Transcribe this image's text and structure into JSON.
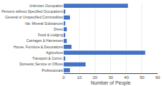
{
  "chart_data": {
    "type": "bar",
    "orientation": "horizontal",
    "categories": [
      "Professionals",
      "Domestic Service or Offices",
      "Transport & Comm.",
      "Agriculture",
      "House, Furniture & Decorations",
      "Carriages & Harnesses",
      "Food & Lodging",
      "Dress",
      "Var. Mineral Substances",
      "General or Unspecified Commodities",
      "Persons without Specified Occupations",
      "Unknown Occupation"
    ],
    "values": [
      4,
      14,
      1,
      52,
      5,
      2,
      1,
      2,
      1,
      4,
      1,
      41
    ],
    "color": "#4472c4",
    "xlabel": "Number of People",
    "xlim": [
      0,
      60
    ],
    "xticks": [
      0,
      10,
      20,
      30,
      40,
      50,
      60
    ],
    "grid": true
  }
}
